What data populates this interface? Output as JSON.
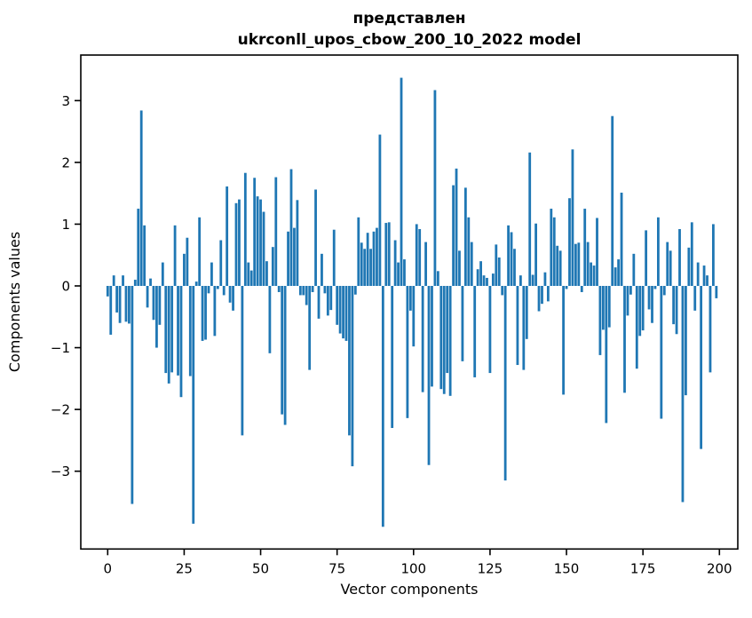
{
  "chart_data": {
    "type": "bar",
    "title_line1": "представлен",
    "title_line2": "ukrconll_upos_cbow_200_10_2022 model",
    "xlabel": "Vector components",
    "ylabel": "Components values",
    "x_ticks": [
      0,
      25,
      50,
      75,
      100,
      125,
      150,
      175,
      200
    ],
    "y_ticks": [
      -3,
      -2,
      -1,
      0,
      1,
      2,
      3
    ],
    "xlim": [
      -10,
      210
    ],
    "ylim": [
      -4.26,
      3.74
    ],
    "grid": false,
    "legend": "none",
    "bar_color": "#1f77b4",
    "n_components": 200,
    "values": [
      -0.17,
      -0.79,
      0.17,
      -0.43,
      -0.6,
      0.17,
      -0.58,
      -0.61,
      -3.53,
      0.1,
      1.25,
      2.84,
      0.98,
      -0.35,
      0.12,
      -0.55,
      -1.0,
      -0.63,
      0.38,
      -1.41,
      -1.58,
      -1.4,
      0.98,
      -1.45,
      -1.8,
      0.52,
      0.78,
      -1.46,
      -3.85,
      0.07,
      1.11,
      -0.89,
      -0.87,
      -0.12,
      0.38,
      -0.81,
      -0.05,
      0.74,
      -0.15,
      1.61,
      -0.27,
      -0.4,
      1.34,
      1.4,
      -2.42,
      1.83,
      0.38,
      0.25,
      1.75,
      1.45,
      1.4,
      1.2,
      0.4,
      -1.09,
      0.63,
      1.76,
      -0.1,
      -2.08,
      -2.25,
      0.88,
      1.89,
      0.94,
      1.39,
      -0.15,
      -0.15,
      -0.31,
      -1.36,
      -0.1,
      1.56,
      -0.53,
      0.52,
      -0.12,
      -0.48,
      -0.39,
      0.91,
      -0.63,
      -0.77,
      -0.85,
      -0.89,
      -2.42,
      -2.92,
      -0.14,
      1.11,
      0.7,
      0.6,
      0.86,
      0.6,
      0.88,
      0.94,
      2.45,
      -3.9,
      1.02,
      1.03,
      -2.3,
      0.74,
      0.38,
      3.37,
      0.43,
      -2.14,
      -0.4,
      -0.98,
      1.0,
      0.92,
      -1.72,
      0.71,
      -2.9,
      -1.63,
      3.17,
      0.24,
      -1.67,
      -1.75,
      -1.41,
      -1.78,
      1.63,
      1.9,
      0.57,
      -1.22,
      1.59,
      1.11,
      0.71,
      -1.48,
      0.27,
      0.4,
      0.17,
      0.13,
      -1.41,
      0.2,
      0.67,
      0.46,
      -0.15,
      -3.15,
      0.98,
      0.87,
      0.6,
      -1.28,
      0.17,
      -1.36,
      -0.86,
      2.16,
      0.18,
      1.01,
      -0.41,
      -0.29,
      0.22,
      -0.25,
      1.25,
      1.11,
      0.65,
      0.57,
      -1.76,
      -0.05,
      1.42,
      2.21,
      0.68,
      0.7,
      -0.1,
      1.25,
      0.71,
      0.38,
      0.33,
      1.1,
      -1.12,
      -0.71,
      -2.22,
      -0.67,
      2.75,
      0.3,
      0.43,
      1.51,
      -1.73,
      -0.48,
      -0.14,
      0.52,
      -1.34,
      -0.81,
      -0.72,
      0.9,
      -0.38,
      -0.6,
      -0.05,
      1.11,
      -2.15,
      -0.15,
      0.71,
      0.57,
      -0.62,
      -0.78,
      0.92,
      -3.5,
      -1.77,
      0.62,
      1.03,
      -0.4,
      0.38,
      -2.64,
      0.33,
      0.17,
      -1.4,
      1.0,
      -0.2
    ]
  }
}
